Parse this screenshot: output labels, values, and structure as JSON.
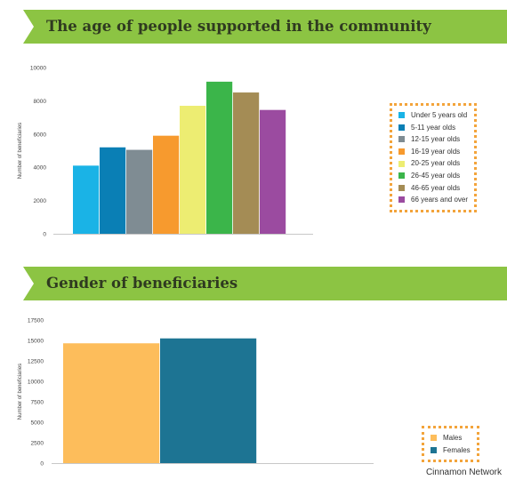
{
  "credit": "Cinnamon Network",
  "chart_data": [
    {
      "type": "bar",
      "title": "The age of people supported in the community",
      "ylabel": "Number of beneficiaries",
      "ylim": [
        0,
        10000
      ],
      "yticks": [
        0,
        2000,
        4000,
        6000,
        8000,
        10000
      ],
      "legend_position": "right",
      "grid": false,
      "series": [
        {
          "name": "Under 5 years old",
          "value": 4100,
          "color": "#1ab3e6"
        },
        {
          "name": "5-11 year olds",
          "value": 5200,
          "color": "#0a7fb5"
        },
        {
          "name": "12-15 year olds",
          "value": 5050,
          "color": "#7f8c93"
        },
        {
          "name": "16-19 year olds",
          "value": 5900,
          "color": "#f79a2e"
        },
        {
          "name": "20-25 year olds",
          "value": 7700,
          "color": "#eded72"
        },
        {
          "name": "26-45 year olds",
          "value": 9150,
          "color": "#3bb54a"
        },
        {
          "name": "46-65 year olds",
          "value": 8500,
          "color": "#a48c55"
        },
        {
          "name": "66 years and over",
          "value": 7450,
          "color": "#9b4ba0"
        }
      ]
    },
    {
      "type": "bar",
      "title": "Gender of beneficiaries",
      "ylabel": "Number of beneficiaries",
      "ylim": [
        0,
        17500
      ],
      "yticks": [
        0,
        2500,
        5000,
        7500,
        10000,
        12500,
        15000,
        17500
      ],
      "legend_position": "bottom-right",
      "grid": false,
      "series": [
        {
          "name": "Males",
          "value": 14650,
          "color": "#fdbd5b"
        },
        {
          "name": "Females",
          "value": 15250,
          "color": "#1d7493"
        }
      ]
    }
  ]
}
